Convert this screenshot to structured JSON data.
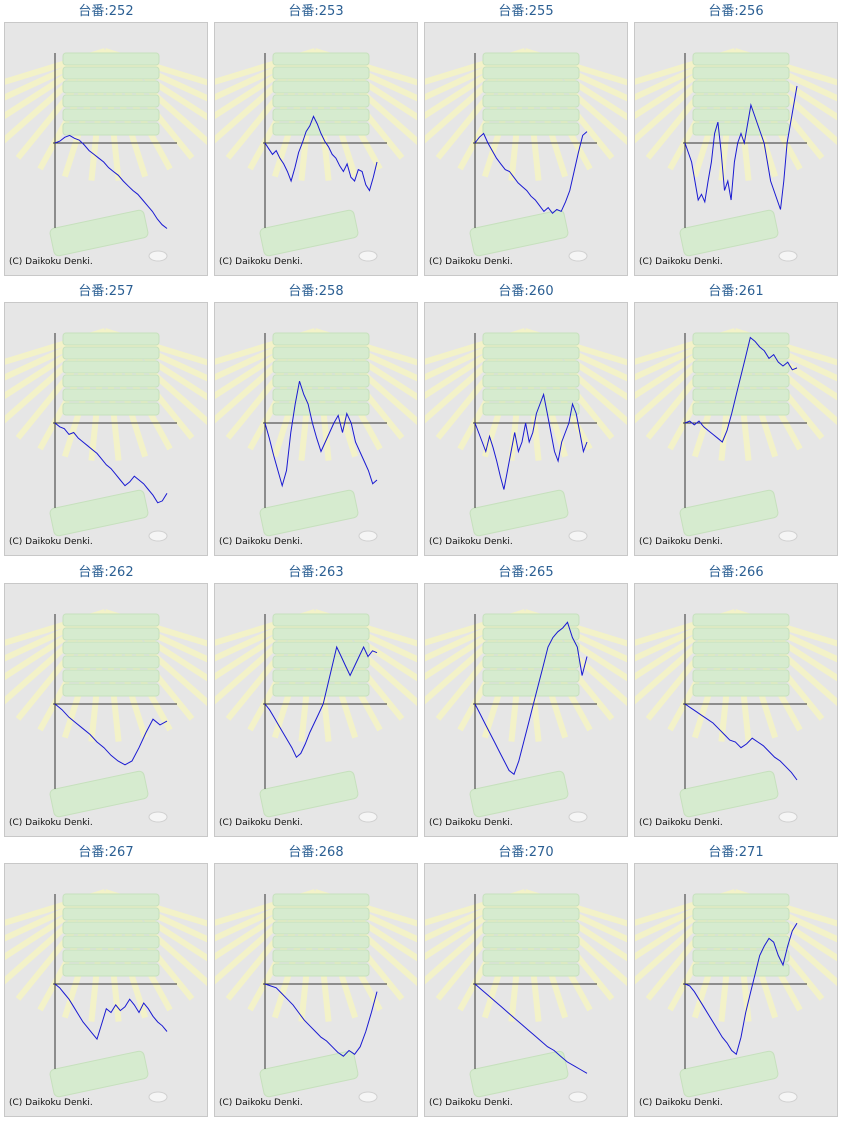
{
  "copyright": "(C) Daikoku Denki.",
  "colors": {
    "line": "#1a1ad2",
    "axis": "#333333",
    "title": "#2b5f93",
    "panel": "#e6e6e6"
  },
  "chart_data": [
    {
      "type": "line",
      "title": "台番:252",
      "y": [
        0,
        2,
        6,
        8,
        5,
        3,
        -2,
        -8,
        -12,
        -16,
        -20,
        -26,
        -30,
        -34,
        -40,
        -45,
        -50,
        -54,
        -60,
        -66,
        -72,
        -80,
        -86,
        -90
      ]
    },
    {
      "type": "line",
      "title": "台番:253",
      "y": [
        0,
        -6,
        -12,
        -8,
        -16,
        -22,
        -30,
        -40,
        -26,
        -10,
        0,
        12,
        18,
        28,
        20,
        10,
        2,
        -4,
        -12,
        -16,
        -24,
        -30,
        -22,
        -36,
        -40,
        -28,
        -30,
        -44,
        -50,
        -36,
        -20
      ]
    },
    {
      "type": "line",
      "title": "台番:255",
      "y": [
        0,
        6,
        10,
        0,
        -8,
        -16,
        -22,
        -28,
        -30,
        -36,
        -42,
        -46,
        -50,
        -56,
        -60,
        -66,
        -72,
        -68,
        -74,
        -70,
        -72,
        -62,
        -50,
        -30,
        -10,
        8,
        12
      ]
    },
    {
      "type": "line",
      "title": "台番:256",
      "y": [
        0,
        -10,
        -20,
        -40,
        -60,
        -54,
        -62,
        -40,
        -20,
        10,
        22,
        -10,
        -50,
        -40,
        -60,
        -20,
        0,
        10,
        0,
        20,
        40,
        30,
        20,
        10,
        0,
        -20,
        -40,
        -50,
        -60,
        -70,
        -40,
        0,
        20,
        40,
        60
      ]
    },
    {
      "type": "line",
      "title": "台番:257",
      "y": [
        0,
        -4,
        -6,
        -12,
        -10,
        -16,
        -20,
        -24,
        -28,
        -32,
        -38,
        -44,
        -48,
        -54,
        -60,
        -66,
        -62,
        -56,
        -60,
        -64,
        -70,
        -76,
        -84,
        -82,
        -74
      ]
    },
    {
      "type": "line",
      "title": "台番:258",
      "y": [
        0,
        -16,
        -34,
        -50,
        -66,
        -50,
        -10,
        20,
        44,
        30,
        20,
        0,
        -16,
        -30,
        -20,
        -10,
        0,
        8,
        -10,
        10,
        0,
        -20,
        -30,
        -40,
        -50,
        -64,
        -60
      ]
    },
    {
      "type": "line",
      "title": "台番:260",
      "y": [
        0,
        -10,
        -20,
        -30,
        -14,
        -26,
        -40,
        -56,
        -70,
        -50,
        -30,
        -10,
        -30,
        -20,
        0,
        -20,
        -10,
        10,
        20,
        30,
        10,
        -10,
        -30,
        -40,
        -20,
        -10,
        0,
        20,
        10,
        -10,
        -30,
        -20
      ]
    },
    {
      "type": "line",
      "title": "台番:261",
      "y": [
        0,
        2,
        -2,
        2,
        -4,
        -8,
        -12,
        -16,
        -20,
        -8,
        10,
        30,
        50,
        70,
        90,
        86,
        80,
        76,
        68,
        72,
        64,
        60,
        64,
        56,
        58
      ]
    },
    {
      "type": "line",
      "title": "台番:262",
      "y": [
        0,
        -6,
        -14,
        -20,
        -26,
        -32,
        -40,
        -46,
        -54,
        -60,
        -64,
        -60,
        -46,
        -30,
        -16,
        -22,
        -18
      ]
    },
    {
      "type": "line",
      "title": "台番:263",
      "y": [
        0,
        -6,
        -14,
        -22,
        -30,
        -38,
        -46,
        -56,
        -52,
        -42,
        -30,
        -20,
        -10,
        0,
        20,
        40,
        60,
        50,
        40,
        30,
        40,
        50,
        60,
        50,
        56,
        54
      ]
    },
    {
      "type": "line",
      "title": "台番:265",
      "y": [
        0,
        -10,
        -20,
        -30,
        -40,
        -50,
        -60,
        -70,
        -74,
        -60,
        -40,
        -20,
        0,
        20,
        40,
        60,
        70,
        76,
        80,
        86,
        70,
        60,
        30,
        50
      ]
    },
    {
      "type": "line",
      "title": "台番:266",
      "y": [
        0,
        -4,
        -8,
        -12,
        -16,
        -20,
        -26,
        -32,
        -38,
        -40,
        -46,
        -42,
        -36,
        -40,
        -44,
        -50,
        -56,
        -60,
        -66,
        -72,
        -80
      ]
    },
    {
      "type": "line",
      "title": "台番:267",
      "y": [
        0,
        -4,
        -10,
        -16,
        -24,
        -32,
        -40,
        -46,
        -52,
        -58,
        -42,
        -26,
        -30,
        -22,
        -28,
        -24,
        -16,
        -22,
        -30,
        -20,
        -26,
        -34,
        -40,
        -44,
        -50
      ]
    },
    {
      "type": "line",
      "title": "台番:268",
      "y": [
        0,
        -2,
        -4,
        -10,
        -16,
        -22,
        -30,
        -38,
        -44,
        -50,
        -56,
        -60,
        -66,
        -72,
        -76,
        -70,
        -74,
        -66,
        -50,
        -30,
        -8
      ]
    },
    {
      "type": "line",
      "title": "台番:270",
      "y": [
        0,
        -6,
        -12,
        -18,
        -24,
        -30,
        -36,
        -42,
        -48,
        -54,
        -60,
        -66,
        -70,
        -76,
        -82,
        -86,
        -90,
        -94
      ]
    },
    {
      "type": "line",
      "title": "台番:271",
      "y": [
        0,
        -2,
        -8,
        -16,
        -24,
        -32,
        -40,
        -48,
        -56,
        -62,
        -70,
        -74,
        -56,
        -30,
        -10,
        10,
        30,
        40,
        48,
        44,
        30,
        20,
        40,
        56,
        64
      ]
    }
  ]
}
